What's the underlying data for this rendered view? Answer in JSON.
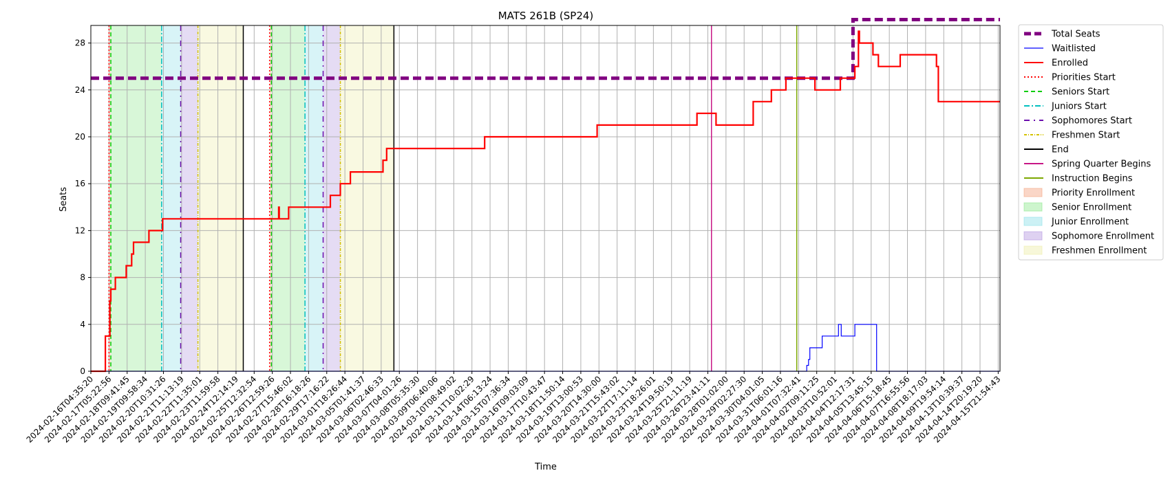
{
  "chart_data": {
    "type": "line",
    "title": "MATS 261B (SP24)",
    "xlabel": "Time",
    "ylabel": "Seats",
    "ylim": [
      0,
      29.5
    ],
    "yticks": [
      0,
      4,
      8,
      12,
      16,
      20,
      24,
      28
    ],
    "grid": true,
    "legend_position": "outside-top-right",
    "x_tick_labels": [
      "2024-02-16T04:35:20",
      "2024-02-17T05:22:56",
      "2024-02-18T09:41:45",
      "2024-02-19T09:58:34",
      "2024-02-20T10:31:26",
      "2024-02-21T11:13:19",
      "2024-02-22T11:35:01",
      "2024-02-23T11:59:58",
      "2024-02-24T12:14:19",
      "2024-02-25T12:32:54",
      "2024-02-26T12:59:26",
      "2024-02-27T15:46:02",
      "2024-02-28T16:18:26",
      "2024-02-29T17:16:22",
      "2024-03-01T18:26:44",
      "2024-03-05T01:41:37",
      "2024-03-06T02:46:33",
      "2024-03-07T04:01:26",
      "2024-03-08T05:35:30",
      "2024-03-09T06:40:06",
      "2024-03-10T08:49:02",
      "2024-03-11T10:02:29",
      "2024-03-14T06:13:24",
      "2024-03-15T07:36:34",
      "2024-03-16T09:03:09",
      "2024-03-17T10:43:47",
      "2024-03-18T11:50:14",
      "2024-03-19T13:00:53",
      "2024-03-20T14:30:00",
      "2024-03-21T15:43:02",
      "2024-03-22T17:11:14",
      "2024-03-23T18:26:01",
      "2024-03-24T19:50:19",
      "2024-03-25T21:11:19",
      "2024-03-26T23:41:11",
      "2024-03-28T01:02:00",
      "2024-03-29T02:27:30",
      "2024-03-30T04:01:05",
      "2024-03-31T06:01:16",
      "2024-04-01T07:32:41",
      "2024-04-02T09:11:25",
      "2024-04-03T10:52:01",
      "2024-04-04T12:17:31",
      "2024-04-05T13:45:15",
      "2024-04-06T15:18:45",
      "2024-04-07T16:55:56",
      "2024-04-08T18:17:03",
      "2024-04-09T19:54:14",
      "2024-04-13T10:39:37",
      "2024-04-14T20:19:20",
      "2024-04-15T21:54:43"
    ],
    "x_range": [
      0,
      50.1
    ],
    "series": [
      {
        "name": "Total Seats",
        "color": "#800080",
        "style": "dashed",
        "points": [
          [
            0,
            25
          ],
          [
            42.0,
            25
          ],
          [
            42.0,
            30
          ],
          [
            50.1,
            30
          ]
        ]
      },
      {
        "name": "Waitlisted",
        "color": "#0000ff",
        "style": "solid",
        "points": [
          [
            0,
            0
          ],
          [
            39.45,
            0
          ],
          [
            39.45,
            0.5
          ],
          [
            39.55,
            0.5
          ],
          [
            39.55,
            1
          ],
          [
            39.62,
            1
          ],
          [
            39.62,
            2
          ],
          [
            40.3,
            2
          ],
          [
            40.3,
            3
          ],
          [
            41.2,
            3
          ],
          [
            41.2,
            4
          ],
          [
            41.35,
            4
          ],
          [
            41.35,
            3
          ],
          [
            42.1,
            3
          ],
          [
            42.1,
            4
          ],
          [
            43.3,
            4
          ],
          [
            43.3,
            0
          ],
          [
            50.1,
            0
          ]
        ]
      },
      {
        "name": "Enrolled",
        "color": "#ff0000",
        "style": "solid",
        "points": [
          [
            0,
            0
          ],
          [
            0.8,
            0
          ],
          [
            0.8,
            3
          ],
          [
            1.05,
            3
          ],
          [
            1.05,
            6
          ],
          [
            1.1,
            6
          ],
          [
            1.1,
            7
          ],
          [
            1.35,
            7
          ],
          [
            1.35,
            8
          ],
          [
            1.95,
            8
          ],
          [
            1.95,
            9
          ],
          [
            2.25,
            9
          ],
          [
            2.25,
            10
          ],
          [
            2.35,
            10
          ],
          [
            2.35,
            11
          ],
          [
            3.2,
            11
          ],
          [
            3.2,
            12
          ],
          [
            3.95,
            12
          ],
          [
            3.95,
            13
          ],
          [
            10.35,
            13
          ],
          [
            10.35,
            14
          ],
          [
            10.38,
            14
          ],
          [
            10.38,
            13
          ],
          [
            10.9,
            13
          ],
          [
            10.9,
            14
          ],
          [
            13.2,
            14
          ],
          [
            13.2,
            15
          ],
          [
            13.75,
            15
          ],
          [
            13.75,
            16
          ],
          [
            14.3,
            16
          ],
          [
            14.3,
            17
          ],
          [
            16.1,
            17
          ],
          [
            16.1,
            18
          ],
          [
            16.3,
            18
          ],
          [
            16.3,
            19
          ],
          [
            21.7,
            19
          ],
          [
            21.7,
            20
          ],
          [
            27.9,
            20
          ],
          [
            27.9,
            21
          ],
          [
            33.4,
            21
          ],
          [
            33.4,
            22
          ],
          [
            34.45,
            22
          ],
          [
            34.45,
            21
          ],
          [
            36.5,
            21
          ],
          [
            36.5,
            23
          ],
          [
            37.5,
            23
          ],
          [
            37.5,
            24
          ],
          [
            38.3,
            24
          ],
          [
            38.3,
            25
          ],
          [
            39.3,
            25
          ],
          [
            39.3,
            25
          ],
          [
            39.9,
            25
          ],
          [
            39.9,
            24
          ],
          [
            41.3,
            24
          ],
          [
            41.3,
            25
          ],
          [
            42.1,
            25
          ],
          [
            42.1,
            26
          ],
          [
            42.3,
            26
          ],
          [
            42.3,
            29
          ],
          [
            42.35,
            29
          ],
          [
            42.35,
            28
          ],
          [
            43.1,
            28
          ],
          [
            43.1,
            27
          ],
          [
            43.4,
            27
          ],
          [
            43.4,
            26
          ],
          [
            44.6,
            26
          ],
          [
            44.6,
            27
          ],
          [
            46.6,
            27
          ],
          [
            46.6,
            26
          ],
          [
            46.7,
            26
          ],
          [
            46.7,
            23
          ],
          [
            50.1,
            23
          ]
        ]
      }
    ],
    "markers": [
      {
        "name": "Priorities Start",
        "color": "#ff0000",
        "style": "dotted",
        "x": [
          1.0,
          9.85
        ]
      },
      {
        "name": "Seniors Start",
        "color": "#00cc00",
        "style": "dashed",
        "x": [
          1.1,
          9.95
        ]
      },
      {
        "name": "Juniors Start",
        "color": "#00bfbf",
        "style": "dashdot",
        "x": [
          3.9,
          11.8
        ]
      },
      {
        "name": "Sophomores Start",
        "color": "#6a0dad",
        "style": "dashdot-sparse",
        "x": [
          4.95,
          12.8
        ]
      },
      {
        "name": "Freshmen Start",
        "color": "#d4c200",
        "style": "dashdot-fine",
        "x": [
          5.9,
          13.75
        ]
      },
      {
        "name": "End",
        "color": "#000000",
        "style": "solid",
        "x": [
          8.4,
          16.7
        ]
      },
      {
        "name": "Spring Quarter Begins",
        "color": "#c71585",
        "style": "solid",
        "x": [
          34.2
        ]
      },
      {
        "name": "Instruction Begins",
        "color": "#7ca800",
        "style": "solid",
        "x": [
          38.9
        ]
      }
    ],
    "spans": [
      {
        "name": "Priority Enrollment",
        "color": "#f4a582",
        "ranges": [
          [
            1.0,
            1.1
          ],
          [
            9.85,
            9.95
          ]
        ]
      },
      {
        "name": "Senior Enrollment",
        "color": "#90e890",
        "ranges": [
          [
            1.1,
            3.9
          ],
          [
            9.95,
            11.8
          ]
        ]
      },
      {
        "name": "Junior Enrollment",
        "color": "#8ee0e8",
        "ranges": [
          [
            3.9,
            4.95
          ],
          [
            11.8,
            12.8
          ]
        ]
      },
      {
        "name": "Sophomore Enrollment",
        "color": "#b59ae0",
        "ranges": [
          [
            4.95,
            5.9
          ],
          [
            12.8,
            13.75
          ]
        ]
      },
      {
        "name": "Freshmen Enrollment",
        "color": "#eeeeaa",
        "ranges": [
          [
            5.9,
            8.4
          ],
          [
            13.75,
            16.7
          ]
        ]
      }
    ],
    "legend": [
      {
        "label": "Total Seats",
        "kind": "line",
        "color": "#800080",
        "style": "dashed-thick"
      },
      {
        "label": "Waitlisted",
        "kind": "line",
        "color": "#0000ff",
        "style": "solid-thin"
      },
      {
        "label": "Enrolled",
        "kind": "line",
        "color": "#ff0000",
        "style": "solid"
      },
      {
        "label": "Priorities Start",
        "kind": "line",
        "color": "#ff0000",
        "style": "dotted"
      },
      {
        "label": "Seniors Start",
        "kind": "line",
        "color": "#00cc00",
        "style": "dashed"
      },
      {
        "label": "Juniors Start",
        "kind": "line",
        "color": "#00bfbf",
        "style": "dashdot"
      },
      {
        "label": "Sophomores Start",
        "kind": "line",
        "color": "#6a0dad",
        "style": "dashdot-sparse"
      },
      {
        "label": "Freshmen Start",
        "kind": "line",
        "color": "#d4c200",
        "style": "dashdot-fine"
      },
      {
        "label": "End",
        "kind": "line",
        "color": "#000000",
        "style": "solid"
      },
      {
        "label": "Spring Quarter Begins",
        "kind": "line",
        "color": "#c71585",
        "style": "solid"
      },
      {
        "label": "Instruction Begins",
        "kind": "line",
        "color": "#7ca800",
        "style": "solid"
      },
      {
        "label": "Priority Enrollment",
        "kind": "patch",
        "color": "#f4a582"
      },
      {
        "label": "Senior Enrollment",
        "kind": "patch",
        "color": "#90e890"
      },
      {
        "label": "Junior Enrollment",
        "kind": "patch",
        "color": "#8ee0e8"
      },
      {
        "label": "Sophomore Enrollment",
        "kind": "patch",
        "color": "#b59ae0"
      },
      {
        "label": "Freshmen Enrollment",
        "kind": "patch",
        "color": "#eeeeaa"
      }
    ]
  }
}
